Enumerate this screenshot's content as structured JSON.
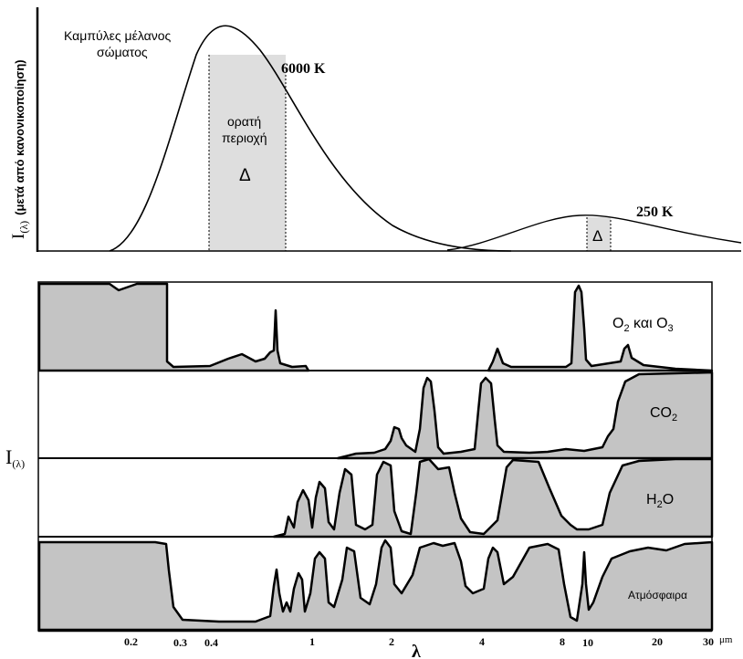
{
  "top": {
    "ylabel": "I",
    "ylabel_sub": "(λ)",
    "ylabel_note": "(μετά από κανονικοποίηση)",
    "curves_label_line1": "Καμπύλες μέλανος",
    "curves_label_line2": "σώματος",
    "t_hot": "6000 K",
    "t_cold": "250 K",
    "visible_line1": "ορατή",
    "visible_line2": "περιοχή",
    "delta_visible": "Δ",
    "delta_ir": "Δ"
  },
  "bottom": {
    "ylabel": "I",
    "ylabel_sub": "(λ)",
    "rows": [
      {
        "main": "O",
        "sub": "2",
        "rest": " και  O",
        "sub2": "3"
      },
      {
        "main": "CO",
        "sub": "2"
      },
      {
        "main": "H",
        "sub": "2",
        "rest": "O"
      },
      {
        "main": "Ατμόσφαιρα"
      }
    ],
    "xticks": [
      "0.2",
      "0.3",
      "0.4",
      "1",
      "2",
      "4",
      "8",
      "10",
      "20",
      "30"
    ],
    "xunit": "μm",
    "xlabel": "λ"
  },
  "colors": {
    "fill": "#c4c4c4",
    "visible_band": "#dedede",
    "line": "#000000"
  }
}
